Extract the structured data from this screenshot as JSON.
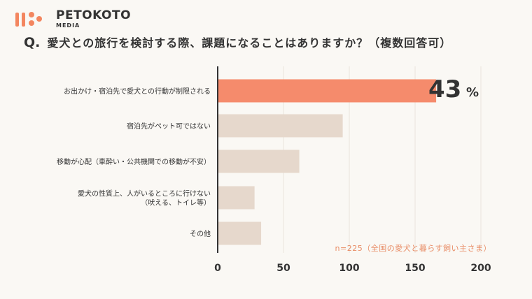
{
  "brand": {
    "name": "PETOKOTO",
    "sub": "MEDIA",
    "accent": "#f3865f"
  },
  "question": {
    "mark": "Q.",
    "text": "愛犬との旅行を検討する際、課題になることはありますか？（複数回答可）"
  },
  "chart_data": {
    "type": "bar",
    "orientation": "horizontal",
    "categories": [
      [
        "お出かけ・宿泊先で愛犬との行動が制限される"
      ],
      [
        "宿泊先がペット可ではない"
      ],
      [
        "移動が心配（車酔い・公共機関での移動が不安）"
      ],
      [
        "愛犬の性質上、人がいるところに行けない",
        "（吠える、トイレ等）"
      ],
      [
        "その他"
      ]
    ],
    "values": [
      166,
      95,
      62,
      28,
      33
    ],
    "xlim": [
      0,
      200
    ],
    "xticks": [
      "0",
      "50",
      "100",
      "150",
      "200"
    ],
    "highlight_index": 0,
    "highlight_value": "43",
    "highlight_unit": "%",
    "note": "n=225（全国の愛犬と暮らす飼い主さま）",
    "colors": {
      "highlight": "#f58b6c",
      "default": "#e6d8cc",
      "grid": "#e9e3dc",
      "axis": "#333333"
    },
    "grid": true
  }
}
